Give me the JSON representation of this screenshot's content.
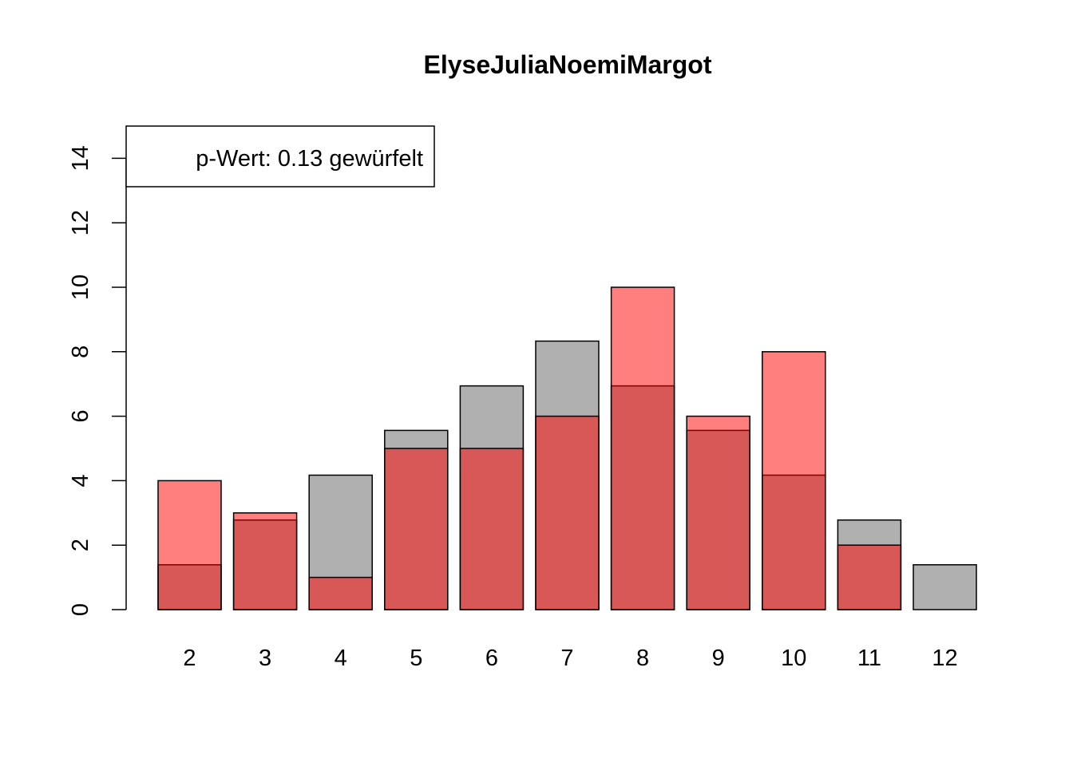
{
  "chart_data": {
    "type": "bar",
    "title": "ElyseJuliaNoemiMargot",
    "xlabel": "",
    "ylabel": "",
    "categories": [
      "2",
      "3",
      "4",
      "5",
      "6",
      "7",
      "8",
      "9",
      "10",
      "11",
      "12"
    ],
    "ylim": [
      0,
      15
    ],
    "yticks": [
      "0",
      "2",
      "4",
      "6",
      "8",
      "10",
      "12",
      "14"
    ],
    "series": [
      {
        "values": [
          1.39,
          2.78,
          4.17,
          5.56,
          6.94,
          8.33,
          6.94,
          5.56,
          4.17,
          2.78,
          1.39
        ],
        "color": "#b0b0b0"
      },
      {
        "values": [
          4,
          3,
          1,
          5,
          5,
          6,
          10,
          6,
          8,
          2,
          0
        ],
        "color": "#ff0000",
        "opacity": 0.5
      }
    ],
    "legend": {
      "text": "p-Wert: 0.13 gewürfelt",
      "position": "top-left"
    },
    "grid": false
  }
}
